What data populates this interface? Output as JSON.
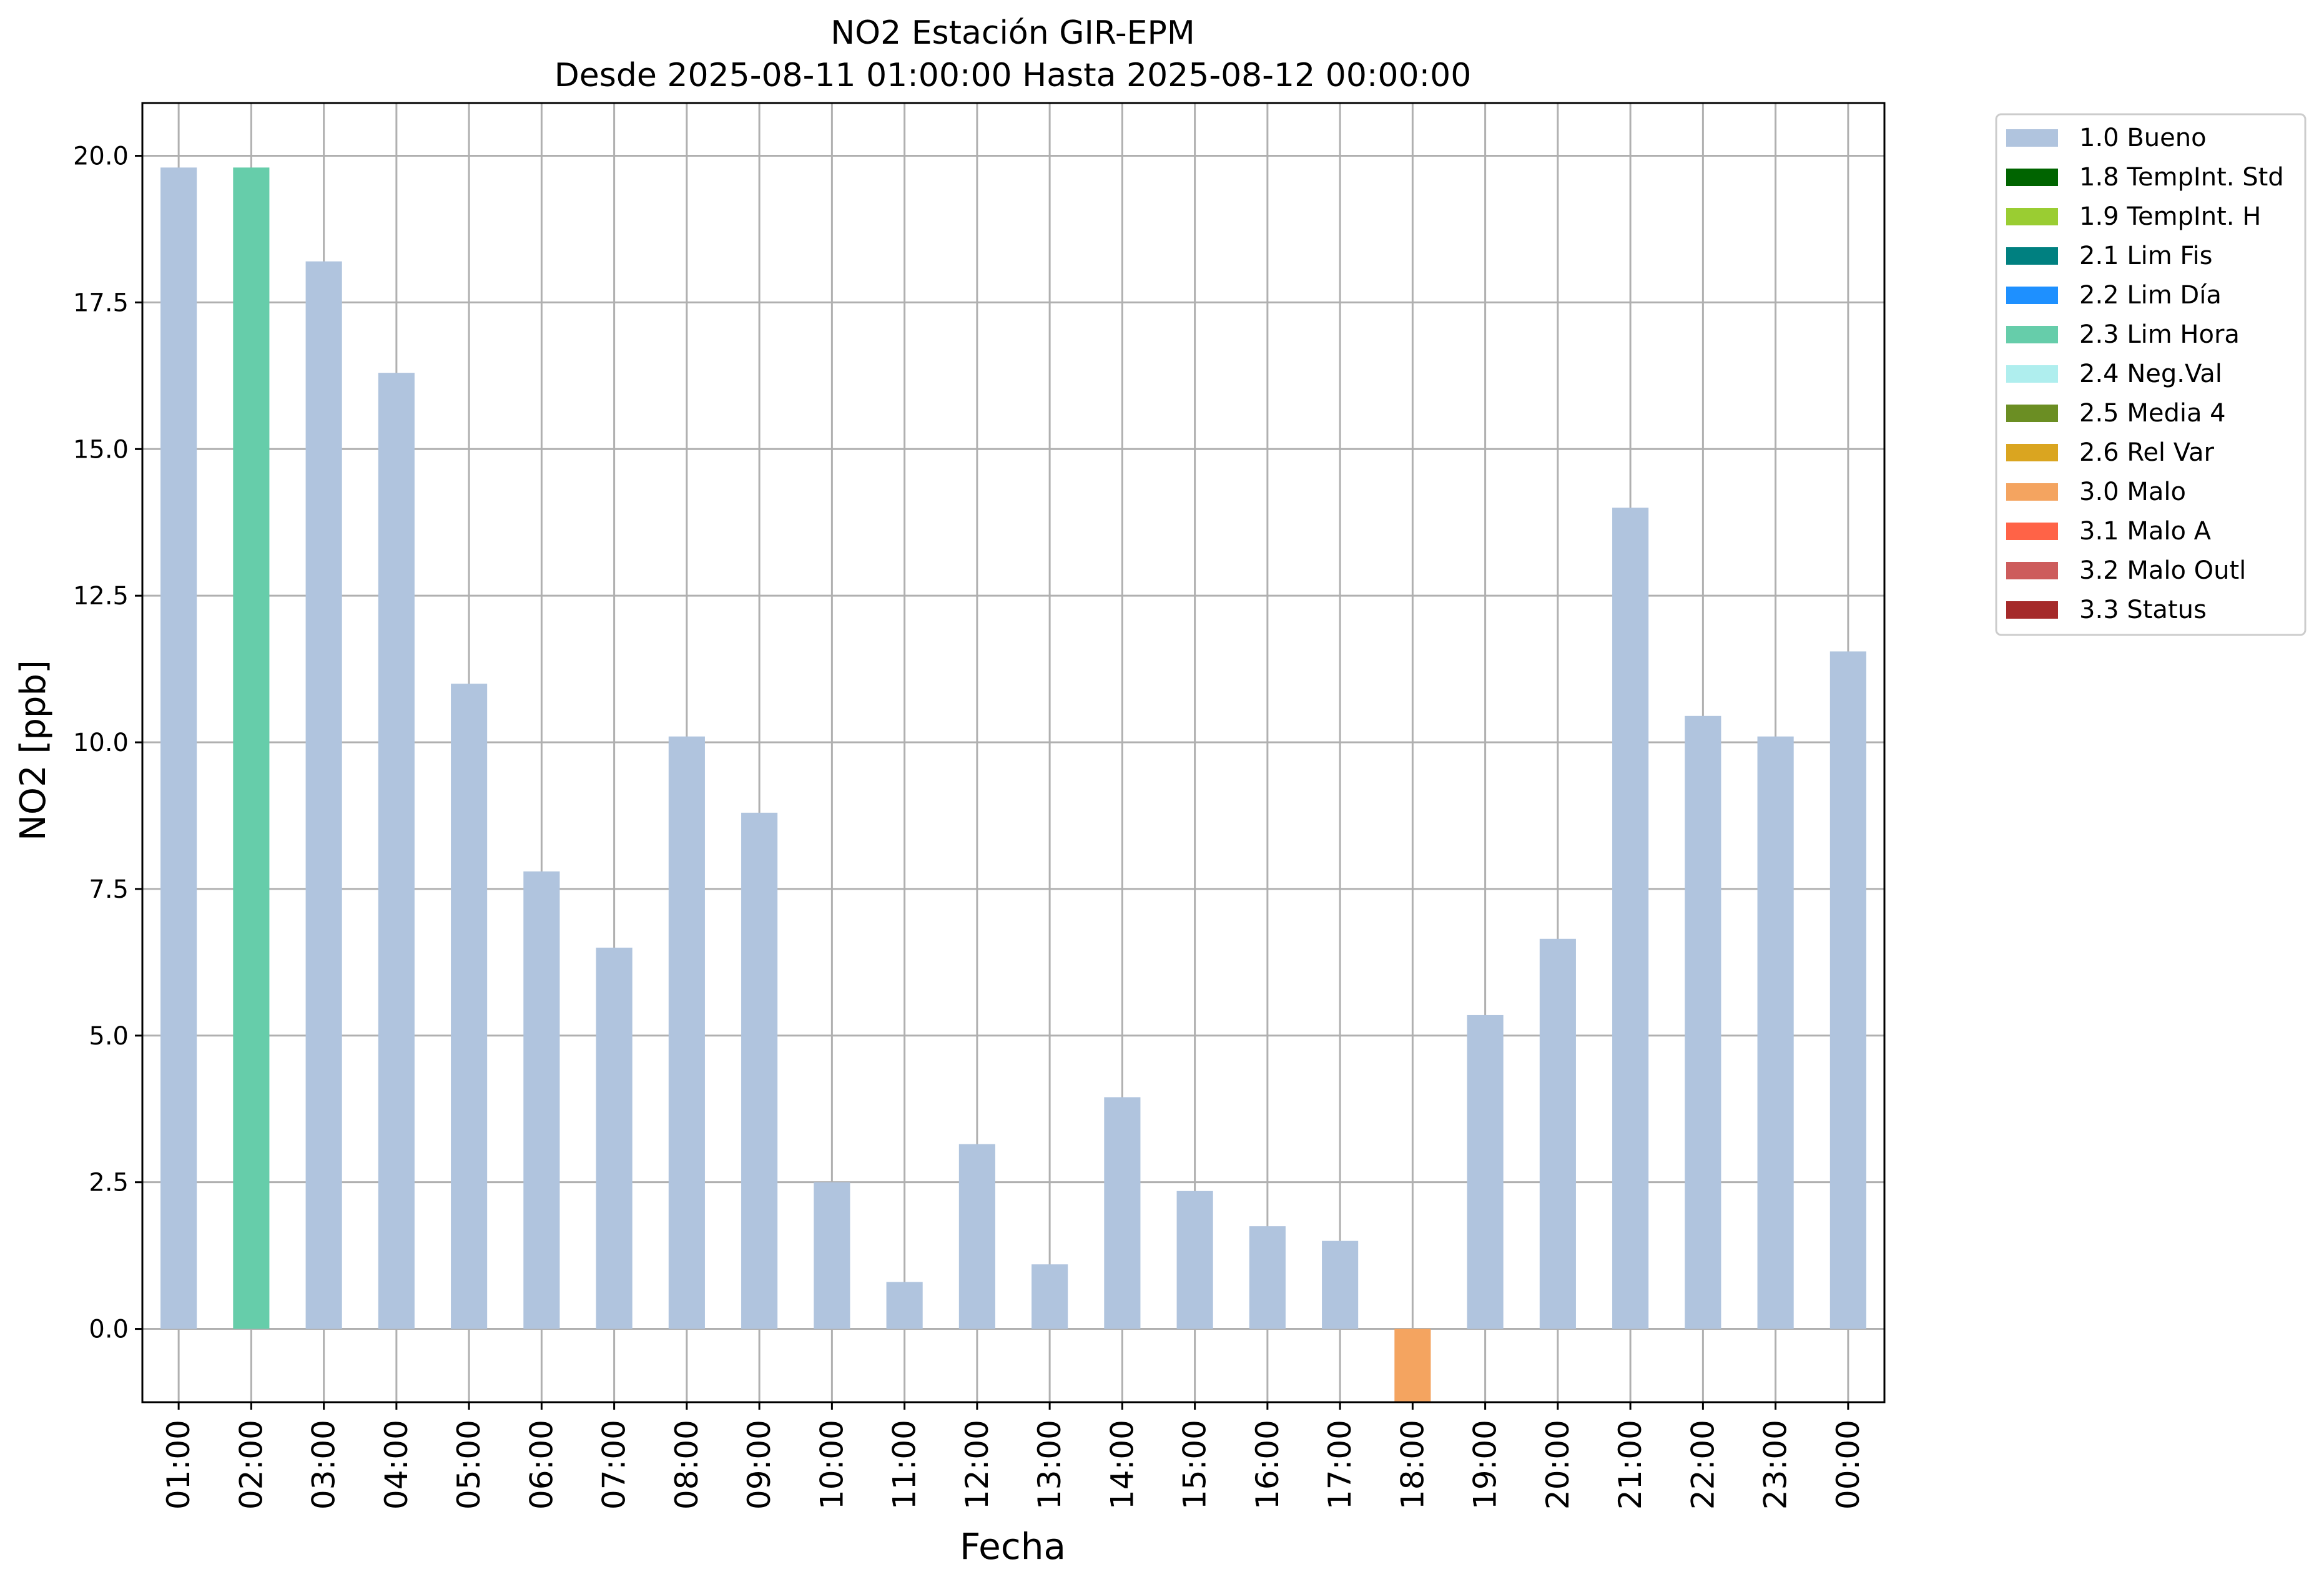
{
  "chart_data": {
    "type": "bar",
    "title_line1": "NO2 Estación GIR-EPM",
    "title_line2": "Desde 2025-08-11 01:00:00 Hasta 2025-08-12 00:00:00",
    "xlabel": "Fecha",
    "ylabel": "NO2 [ppb]",
    "ylim": [
      -1.25,
      20.9
    ],
    "yticks": [
      "0.0",
      "2.5",
      "5.0",
      "7.5",
      "10.0",
      "12.5",
      "15.0",
      "17.5",
      "20.0"
    ],
    "grid": true,
    "legend_position": "outside-top-right",
    "categories": [
      "01:00",
      "02:00",
      "03:00",
      "04:00",
      "05:00",
      "06:00",
      "07:00",
      "08:00",
      "09:00",
      "10:00",
      "11:00",
      "12:00",
      "13:00",
      "14:00",
      "15:00",
      "16:00",
      "17:00",
      "18:00",
      "19:00",
      "20:00",
      "21:00",
      "22:00",
      "23:00",
      "00:00"
    ],
    "values": [
      19.8,
      19.8,
      18.2,
      16.3,
      11.0,
      7.8,
      6.5,
      10.1,
      8.8,
      2.5,
      0.8,
      3.15,
      1.1,
      3.95,
      2.35,
      1.75,
      1.5,
      -1.25,
      5.35,
      6.65,
      14.0,
      10.45,
      10.1,
      11.55
    ],
    "flags": [
      "1.0 Bueno",
      "2.3 Lim Hora",
      "1.0 Bueno",
      "1.0 Bueno",
      "1.0 Bueno",
      "1.0 Bueno",
      "1.0 Bueno",
      "1.0 Bueno",
      "1.0 Bueno",
      "1.0 Bueno",
      "1.0 Bueno",
      "1.0 Bueno",
      "1.0 Bueno",
      "1.0 Bueno",
      "1.0 Bueno",
      "1.0 Bueno",
      "1.0 Bueno",
      "3.0 Malo",
      "1.0 Bueno",
      "1.0 Bueno",
      "1.0 Bueno",
      "1.0 Bueno",
      "1.0 Bueno",
      "1.0 Bueno"
    ],
    "legend": [
      {
        "label": "1.0 Bueno",
        "color": "#b0c4de"
      },
      {
        "label": "1.8 TempInt. Std",
        "color": "#006400"
      },
      {
        "label": "1.9 TempInt. H",
        "color": "#9acd32"
      },
      {
        "label": "2.1 Lim Fis",
        "color": "#008080"
      },
      {
        "label": "2.2 Lim Día",
        "color": "#1e90ff"
      },
      {
        "label": "2.3 Lim Hora",
        "color": "#66cdaa"
      },
      {
        "label": "2.4 Neg.Val",
        "color": "#afeeee"
      },
      {
        "label": "2.5 Media 4",
        "color": "#6b8e23"
      },
      {
        "label": "2.6 Rel Var",
        "color": "#daa520"
      },
      {
        "label": "3.0 Malo",
        "color": "#f4a460"
      },
      {
        "label": "3.1 Malo A",
        "color": "#ff6347"
      },
      {
        "label": "3.2 Malo Outl",
        "color": "#cd5c5c"
      },
      {
        "label": "3.3 Status",
        "color": "#a52a2a"
      }
    ]
  }
}
